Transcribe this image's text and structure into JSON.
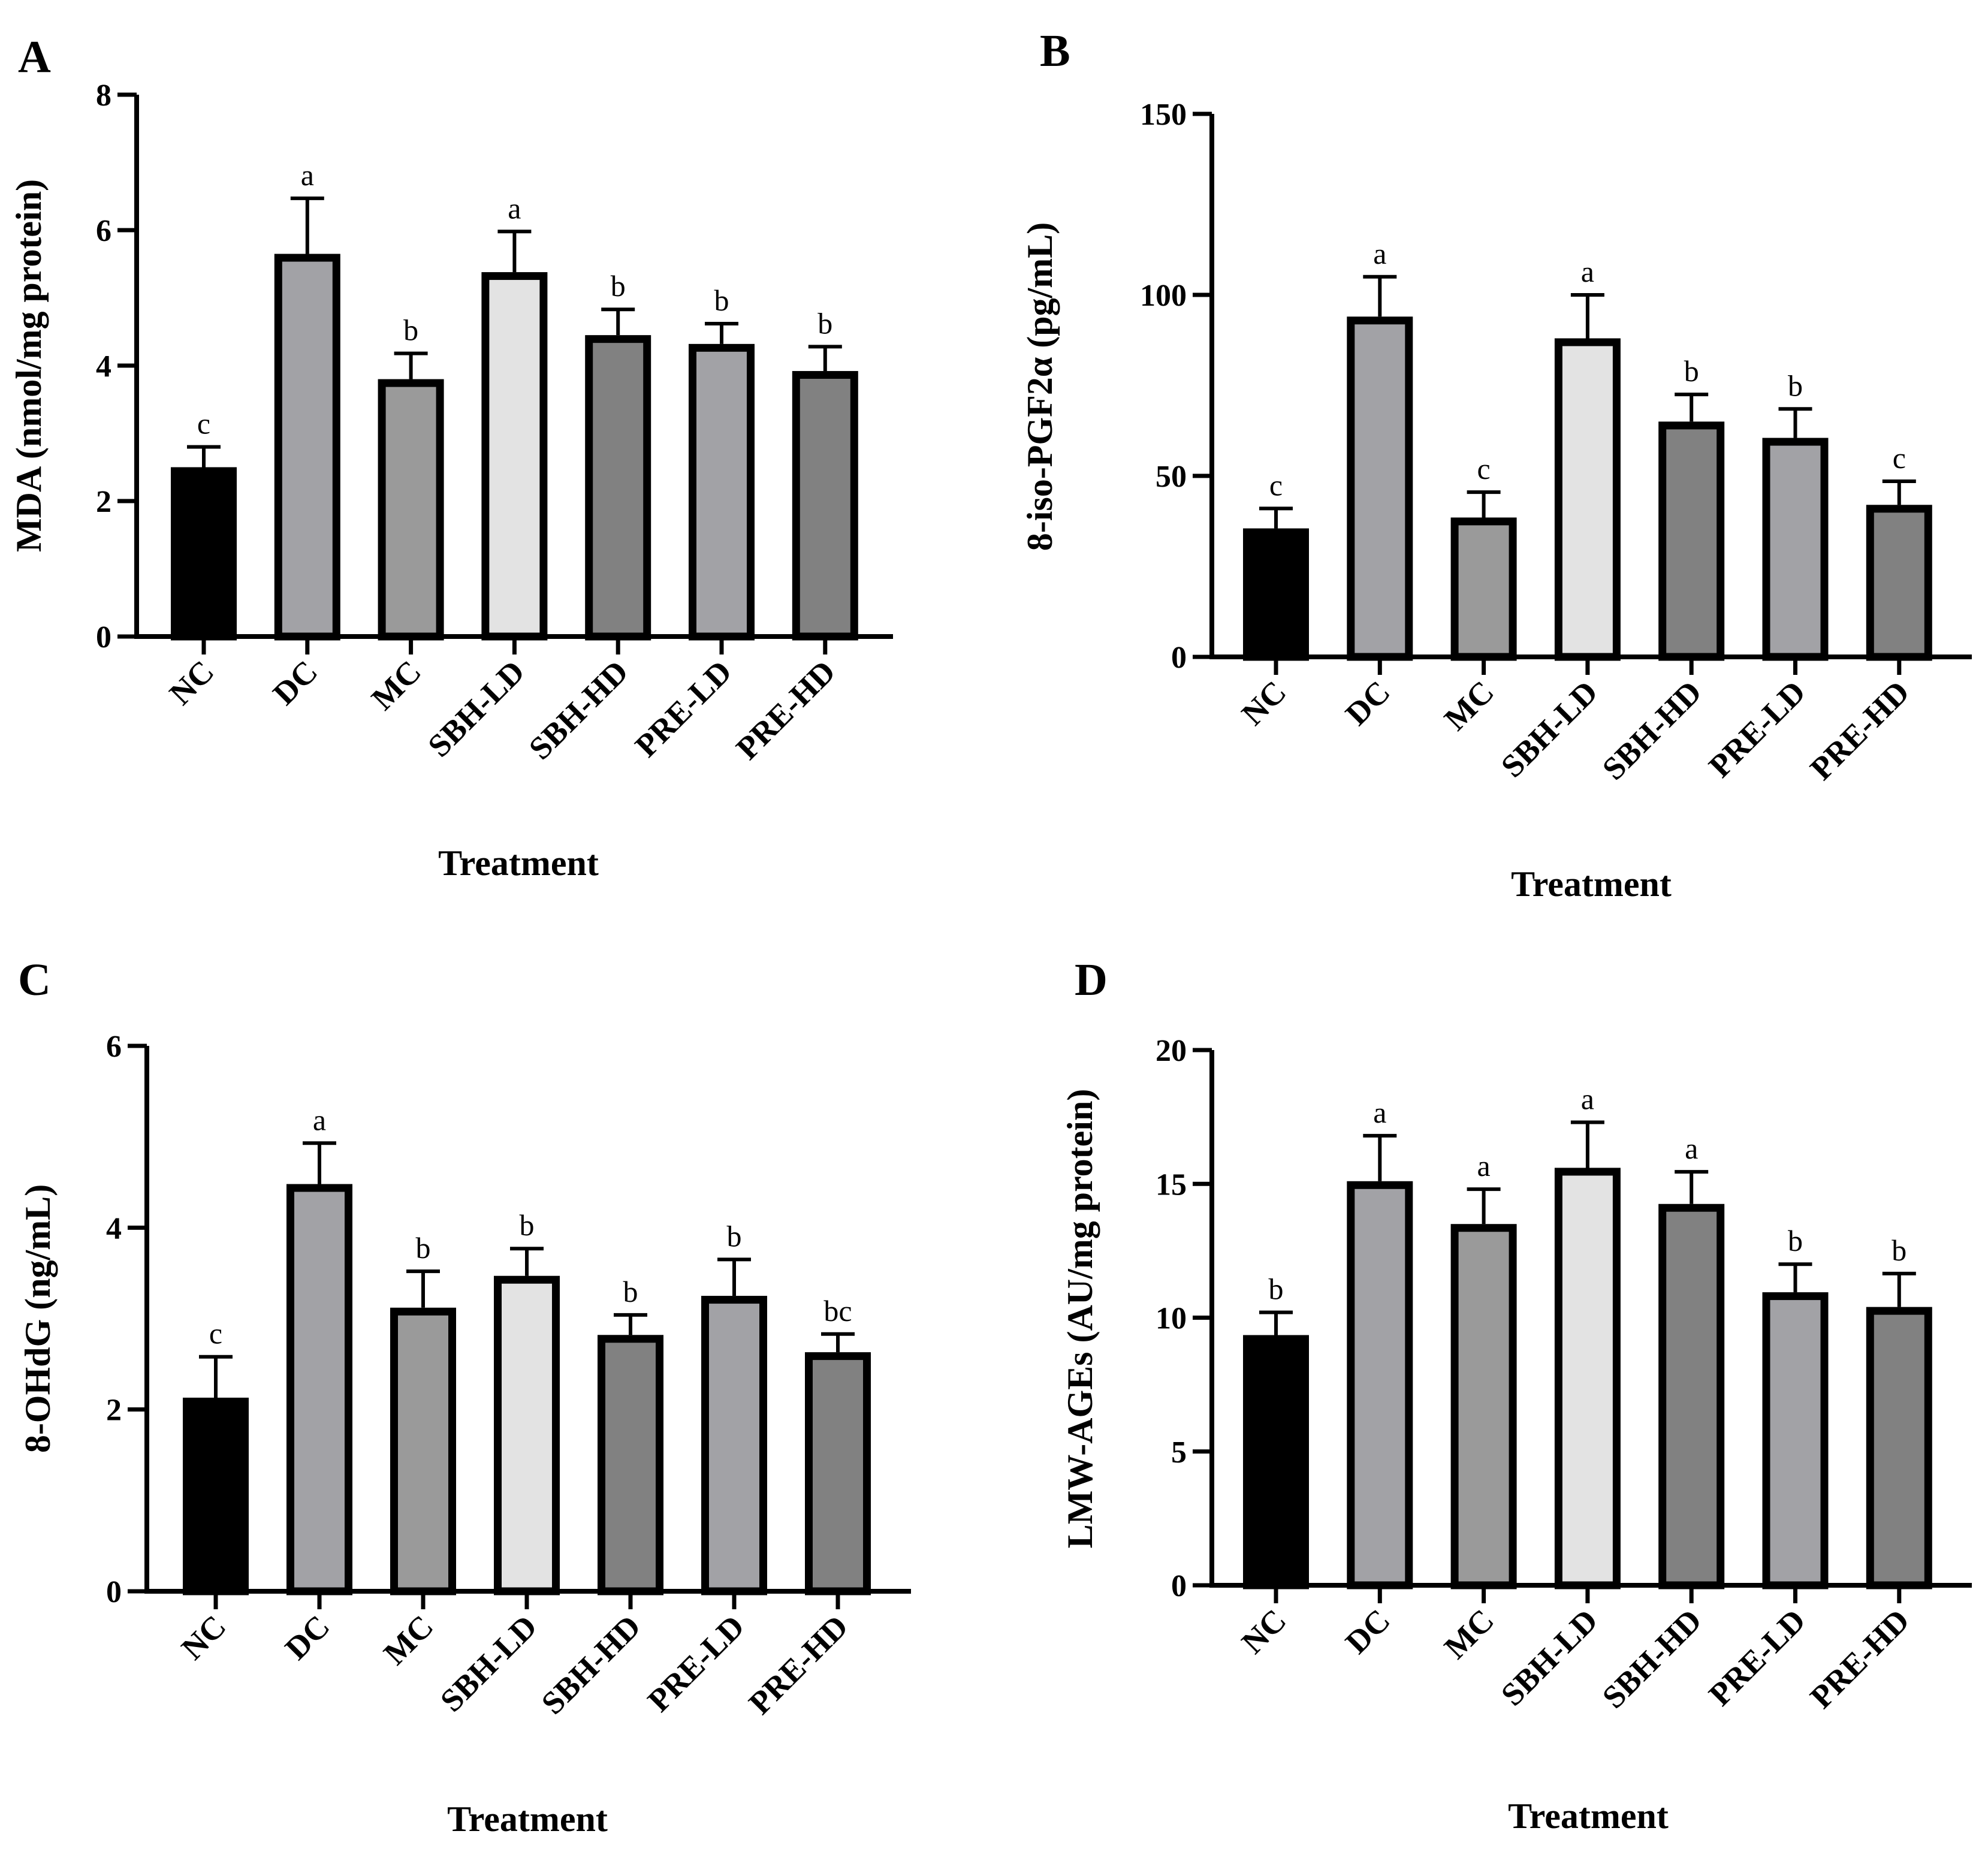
{
  "figure": {
    "x_axis_title": "Treatment"
  },
  "chart_data": [
    {
      "type": "bar",
      "panel": "A",
      "title": "",
      "ylabel": "MDA (nmol/mg protein)",
      "xlabel": "Treatment",
      "ylim": [
        0,
        8
      ],
      "yticks": [
        0,
        2,
        4,
        6,
        8
      ],
      "categories": [
        "NC",
        "DC",
        "MC",
        "SBH-LD",
        "SBH-HD",
        "PRE-LD",
        "PRE-HD"
      ],
      "values": [
        2.5,
        5.65,
        3.8,
        5.38,
        4.45,
        4.32,
        3.92
      ],
      "errors": [
        0.3,
        0.82,
        0.38,
        0.6,
        0.38,
        0.3,
        0.36
      ],
      "letters": [
        "c",
        "a",
        "b",
        "a",
        "b",
        "b",
        "b"
      ],
      "colors": [
        "#000000",
        "#a2a2a6",
        "#9a9a9a",
        "#e3e3e3",
        "#818181",
        "#a2a2a6",
        "#818181"
      ]
    },
    {
      "type": "bar",
      "panel": "B",
      "title": "",
      "ylabel": "8-iso-PGF2α (pg/mL)",
      "xlabel": "Treatment",
      "ylim": [
        0,
        150
      ],
      "yticks": [
        0,
        50,
        100,
        150
      ],
      "categories": [
        "NC",
        "DC",
        "MC",
        "SBH-LD",
        "SBH-HD",
        "PRE-LD",
        "PRE-HD"
      ],
      "values": [
        35.5,
        94,
        38.5,
        88,
        65,
        60.5,
        42
      ],
      "errors": [
        5.5,
        11,
        7,
        12,
        7.5,
        8,
        6.5
      ],
      "letters": [
        "c",
        "a",
        "c",
        "a",
        "b",
        "b",
        "c"
      ],
      "colors": [
        "#000000",
        "#a2a2a6",
        "#9a9a9a",
        "#e3e3e3",
        "#818181",
        "#a2a2a6",
        "#818181"
      ]
    },
    {
      "type": "bar",
      "panel": "C",
      "title": "",
      "ylabel": "8-OHdG (ng/mL)",
      "xlabel": "Treatment",
      "ylim": [
        0,
        6
      ],
      "yticks": [
        0,
        2,
        4,
        6
      ],
      "categories": [
        "NC",
        "DC",
        "MC",
        "SBH-LD",
        "SBH-HD",
        "PRE-LD",
        "PRE-HD"
      ],
      "values": [
        2.13,
        4.48,
        3.12,
        3.47,
        2.82,
        3.25,
        2.63
      ],
      "errors": [
        0.45,
        0.45,
        0.4,
        0.3,
        0.22,
        0.4,
        0.2
      ],
      "letters": [
        "c",
        "a",
        "b",
        "b",
        "b",
        "b",
        "bc"
      ],
      "colors": [
        "#000000",
        "#a2a2a6",
        "#9a9a9a",
        "#e3e3e3",
        "#818181",
        "#a2a2a6",
        "#818181"
      ]
    },
    {
      "type": "bar",
      "panel": "D",
      "title": "",
      "ylabel": "LMW-AGEs (AU/mg protein)",
      "xlabel": "Treatment",
      "ylim": [
        0,
        20
      ],
      "yticks": [
        0,
        5,
        10,
        15,
        20
      ],
      "categories": [
        "NC",
        "DC",
        "MC",
        "SBH-LD",
        "SBH-HD",
        "PRE-LD",
        "PRE-HD"
      ],
      "values": [
        9.35,
        15.1,
        13.5,
        15.6,
        14.25,
        10.95,
        10.4
      ],
      "errors": [
        0.85,
        1.7,
        1.3,
        1.7,
        1.2,
        1.05,
        1.25
      ],
      "letters": [
        "b",
        "a",
        "a",
        "a",
        "a",
        "b",
        "b"
      ],
      "colors": [
        "#000000",
        "#a2a2a6",
        "#9a9a9a",
        "#e3e3e3",
        "#818181",
        "#a2a2a6",
        "#818181"
      ]
    }
  ]
}
